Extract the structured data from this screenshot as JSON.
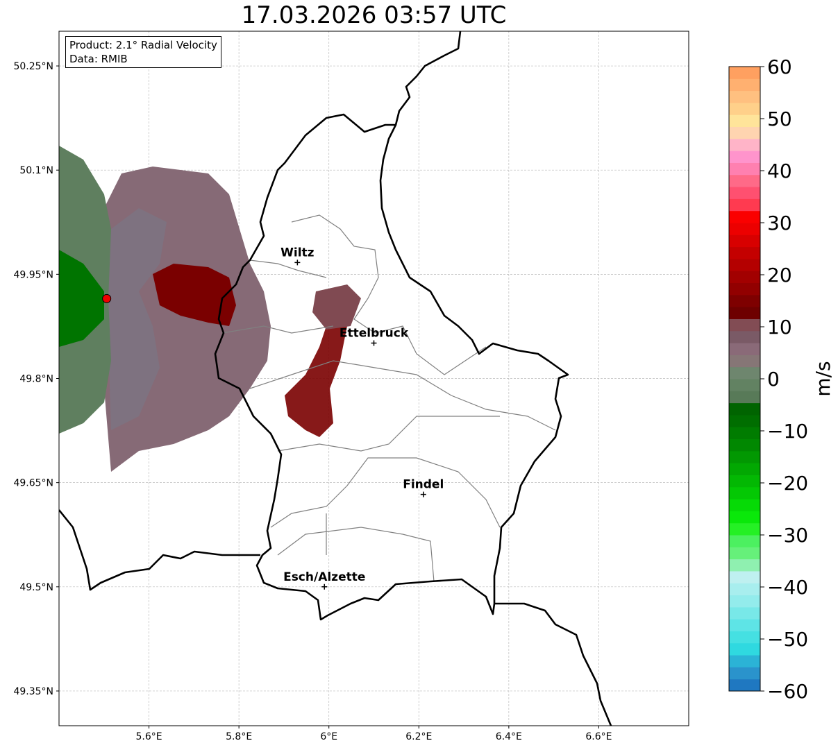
{
  "title": "17.03.2026 03:57 UTC",
  "info": {
    "product": "Product: 2.1° Radial Velocity",
    "data": "Data: RMIB"
  },
  "chart_data": {
    "type": "map",
    "lon_range": [
      5.4,
      6.8
    ],
    "lat_range": [
      49.3,
      50.3
    ],
    "lon_ticks": [
      5.6,
      5.8,
      6.0,
      6.2,
      6.4,
      6.6
    ],
    "lon_tick_labels": [
      "5.6°E",
      "5.8°E",
      "6°E",
      "6.2°E",
      "6.4°E",
      "6.6°E"
    ],
    "lat_ticks": [
      50.25,
      50.1,
      49.95,
      49.8,
      49.65,
      49.5,
      49.35
    ],
    "lat_tick_labels": [
      "50.25°N",
      "50.1°N",
      "49.95°N",
      "49.8°N",
      "49.65°N",
      "49.5°N",
      "49.35°N"
    ],
    "radar_site": {
      "lon": 5.506,
      "lat": 49.915
    },
    "cities": [
      {
        "name": "Wiltz",
        "lon": 5.93,
        "lat": 49.967
      },
      {
        "name": "Ettelbruck",
        "lon": 6.1,
        "lat": 49.851
      },
      {
        "name": "Findel",
        "lon": 6.21,
        "lat": 49.633
      },
      {
        "name": "Esch/Alzette",
        "lon": 5.99,
        "lat": 49.5
      }
    ],
    "colorbar": {
      "label": "m/s",
      "range": [
        -60,
        60
      ],
      "ticks": [
        60,
        50,
        40,
        30,
        20,
        10,
        0,
        -10,
        -20,
        -30,
        -40,
        -50,
        -60
      ],
      "tick_labels": [
        "60",
        "50",
        "40",
        "30",
        "20",
        "10",
        "0",
        "−10",
        "−20",
        "−30",
        "−40",
        "−50",
        "−60"
      ],
      "colors": [
        "#1f78c1",
        "#2a93cc",
        "#2bb3d6",
        "#2fd9e0",
        "#45e0e2",
        "#5ee4e6",
        "#78e8e8",
        "#93ecec",
        "#a8eeee",
        "#bff0f0",
        "#8ff0b0",
        "#66f07a",
        "#4cf060",
        "#25f025",
        "#0ae80a",
        "#06da06",
        "#04c804",
        "#03b803",
        "#02a802",
        "#029802",
        "#018801",
        "#007c00",
        "#006e00",
        "#006400",
        "#587a58",
        "#628262",
        "#6e866e",
        "#867676",
        "#8a6a78",
        "#7a5a66",
        "#824c54",
        "#6e0000",
        "#7e0000",
        "#920000",
        "#a20000",
        "#b40000",
        "#c40000",
        "#d80000",
        "#ec0000",
        "#fa0000",
        "#ff3a50",
        "#ff5070",
        "#ff6a88",
        "#ff80b0",
        "#ff94cc",
        "#ffb4c8",
        "#ffd4b0",
        "#ffe49a",
        "#ffd08a",
        "#ffc080",
        "#ffb070",
        "#ffa060"
      ]
    }
  }
}
